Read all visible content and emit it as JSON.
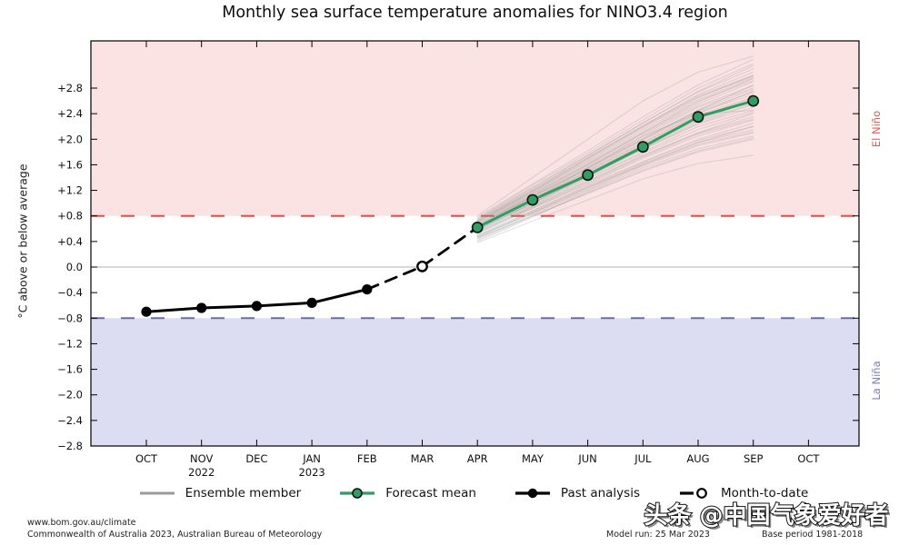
{
  "title": "Monthly sea surface temperature anomalies for NINO3.4 region",
  "y_axis_label": "°C above or below average",
  "band_labels": {
    "el_nino": "El Niño",
    "la_nina": "La Niña"
  },
  "legend": [
    {
      "id": "ensemble",
      "label": "Ensemble member"
    },
    {
      "id": "forecast",
      "label": "Forecast mean"
    },
    {
      "id": "past",
      "label": "Past analysis"
    },
    {
      "id": "mtd",
      "label": "Month-to-date"
    }
  ],
  "footer": {
    "url": "www.bom.gov.au/climate",
    "copyright": "Commonwealth of Australia 2023, Australian Bureau of Meteorology",
    "model_run": "Model run: 25 Mar 2023",
    "base_period": "Base period 1981-2018"
  },
  "watermark": "头条 @中国气象爱好者",
  "colors": {
    "el_nino_band": "#fbe3e3",
    "la_nina_band": "#dcdcf2",
    "el_nino_line": "#e84b44",
    "la_nina_line": "#6b6bb4",
    "el_nino_text": "#d9605a",
    "la_nina_text": "#7d7dbb",
    "forecast": "#2f9e63",
    "past": "#000000",
    "month_to_date": "#000000",
    "ensemble": "#8c8c8c",
    "zero_line": "#b0b0b0",
    "frame": "#000000"
  },
  "chart_data": {
    "type": "line",
    "title": "Monthly sea surface temperature anomalies for NINO3.4 region",
    "ylabel": "°C above or below average",
    "ylim": [
      -2.8,
      3.54
    ],
    "grid": false,
    "legend_position": "bottom",
    "x_tick_labels": [
      "OCT",
      "NOV",
      "DEC",
      "JAN",
      "FEB",
      "MAR",
      "APR",
      "MAY",
      "JUN",
      "JUL",
      "AUG",
      "SEP",
      "OCT"
    ],
    "x_year_labels": [
      {
        "index": 1,
        "label": "2022"
      },
      {
        "index": 3,
        "label": "2023"
      }
    ],
    "y_tick_values": [
      2.8,
      2.4,
      2.0,
      1.6,
      1.2,
      0.8,
      0.4,
      0.0,
      -0.4,
      -0.8,
      -1.2,
      -1.6,
      -2.0,
      -2.4,
      -2.8
    ],
    "y_tick_labels": [
      "+2.8",
      "+2.4",
      "+2.0",
      "+1.6",
      "+1.2",
      "+0.8",
      "+0.4",
      "0.0",
      "−0.4",
      "−0.8",
      "−1.2",
      "−1.6",
      "−2.0",
      "−2.4",
      "−2.8"
    ],
    "thresholds": {
      "el_nino": 0.8,
      "la_nina": -0.8
    },
    "series": {
      "past_analysis": {
        "name": "Past analysis",
        "x": [
          0,
          1,
          2,
          3,
          4
        ],
        "values": [
          -0.7,
          -0.64,
          -0.61,
          -0.56,
          -0.35
        ]
      },
      "month_to_date": {
        "name": "Month-to-date",
        "x": [
          4,
          5,
          6
        ],
        "values": [
          -0.35,
          0.01,
          0.62
        ],
        "marker_x": 5,
        "marker_value": 0.01
      },
      "forecast_mean": {
        "name": "Forecast mean",
        "x": [
          6,
          7,
          8,
          9,
          10,
          11
        ],
        "values": [
          0.62,
          1.05,
          1.44,
          1.88,
          2.35,
          2.6
        ]
      },
      "ensemble": {
        "name": "Ensemble member",
        "x": [
          6,
          7,
          8,
          9,
          10,
          11
        ],
        "members": [
          [
            0.55,
            0.95,
            1.35,
            1.75,
            2.1,
            2.4
          ],
          [
            0.62,
            1.05,
            1.5,
            1.95,
            2.4,
            2.75
          ],
          [
            0.7,
            1.15,
            1.6,
            2.1,
            2.55,
            2.9
          ],
          [
            0.48,
            0.85,
            1.25,
            1.6,
            1.95,
            2.2
          ],
          [
            0.65,
            1.1,
            1.55,
            2.0,
            2.45,
            2.85
          ],
          [
            0.58,
            1.0,
            1.42,
            1.85,
            2.25,
            2.55
          ],
          [
            0.72,
            1.2,
            1.7,
            2.2,
            2.7,
            3.05
          ],
          [
            0.45,
            0.8,
            1.15,
            1.5,
            1.8,
            2.0
          ],
          [
            0.6,
            1.02,
            1.48,
            1.9,
            2.3,
            2.6
          ],
          [
            0.68,
            1.12,
            1.58,
            2.05,
            2.5,
            2.8
          ],
          [
            0.52,
            0.92,
            1.3,
            1.7,
            2.05,
            2.3
          ],
          [
            0.75,
            1.25,
            1.75,
            2.25,
            2.75,
            3.15
          ],
          [
            0.4,
            0.78,
            1.18,
            1.55,
            1.85,
            2.05
          ],
          [
            0.63,
            1.08,
            1.52,
            1.98,
            2.42,
            2.7
          ],
          [
            0.57,
            0.98,
            1.4,
            1.8,
            2.2,
            2.45
          ],
          [
            0.66,
            1.14,
            1.62,
            2.1,
            2.58,
            2.95
          ],
          [
            0.5,
            0.88,
            1.28,
            1.65,
            2.0,
            2.25
          ],
          [
            0.73,
            1.22,
            1.72,
            2.22,
            2.68,
            3.0
          ],
          [
            0.61,
            1.04,
            1.46,
            1.92,
            2.35,
            2.65
          ],
          [
            0.44,
            0.82,
            1.2,
            1.58,
            1.9,
            2.1
          ],
          [
            0.69,
            1.16,
            1.64,
            2.12,
            2.6,
            2.92
          ],
          [
            0.56,
            0.96,
            1.38,
            1.78,
            2.15,
            2.42
          ],
          [
            0.78,
            1.3,
            1.82,
            2.35,
            2.85,
            3.25
          ],
          [
            0.47,
            0.86,
            1.24,
            1.62,
            1.95,
            2.15
          ],
          [
            0.64,
            1.1,
            1.54,
            2.0,
            2.44,
            2.74
          ],
          [
            0.59,
            1.0,
            1.44,
            1.86,
            2.28,
            2.56
          ],
          [
            0.71,
            1.18,
            1.66,
            2.15,
            2.62,
            2.96
          ],
          [
            0.42,
            0.8,
            1.16,
            1.52,
            1.82,
            2.02
          ],
          [
            0.67,
            1.12,
            1.6,
            2.08,
            2.52,
            2.84
          ],
          [
            0.54,
            0.94,
            1.34,
            1.74,
            2.1,
            2.35
          ],
          [
            0.76,
            1.28,
            1.78,
            2.3,
            2.8,
            3.18
          ],
          [
            0.49,
            0.88,
            1.26,
            1.64,
            1.98,
            2.2
          ],
          [
            0.62,
            1.06,
            1.5,
            1.94,
            2.38,
            2.66
          ],
          [
            0.7,
            1.18,
            1.68,
            2.18,
            2.65,
            3.0
          ],
          [
            0.53,
            0.92,
            1.32,
            1.72,
            2.08,
            2.32
          ],
          [
            0.74,
            1.24,
            1.74,
            2.26,
            2.74,
            3.1
          ],
          [
            0.46,
            0.84,
            1.22,
            1.6,
            1.92,
            2.12
          ],
          [
            0.65,
            1.1,
            1.56,
            2.02,
            2.46,
            2.78
          ],
          [
            0.58,
            1.0,
            1.42,
            1.84,
            2.24,
            2.5
          ],
          [
            0.72,
            1.2,
            1.7,
            2.2,
            2.66,
            2.98
          ],
          [
            0.8,
            1.4,
            2.0,
            2.6,
            3.05,
            3.3
          ],
          [
            0.38,
            0.72,
            1.05,
            1.38,
            1.62,
            1.75
          ],
          [
            0.6,
            1.05,
            1.55,
            2.05,
            2.4,
            2.45
          ]
        ]
      }
    }
  }
}
